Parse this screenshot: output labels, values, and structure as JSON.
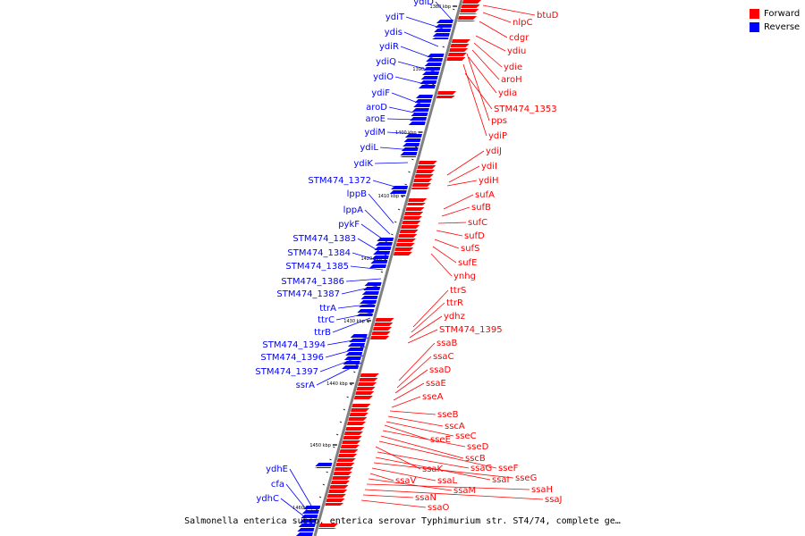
{
  "legend": [
    {
      "label": "Forward",
      "color": "#ff0000"
    },
    {
      "label": "Reverse",
      "color": "#0000ff"
    }
  ],
  "caption": "Salmonella enterica subsp. enterica serovar Typhimurium str. ST4/74, complete ge…",
  "colors": {
    "forward": "#ff0000",
    "reverse": "#0000ff",
    "backbone": "#808080",
    "tick": "#000000"
  },
  "ticks": [
    "1380 kbp",
    "1390 kbp",
    "1400 kbp",
    "1410 kbp",
    "1420 kbp",
    "1430 kbp",
    "1440 kbp",
    "1450 kbp",
    "1460 kbp"
  ],
  "reverse_genes": [
    "ydiD",
    "ydiT",
    "ydis",
    "ydiR",
    "ydiQ",
    "ydiO",
    "ydiF",
    "aroD",
    "aroE",
    "ydiM",
    "ydiL",
    "ydiK",
    "STM474_1372",
    "lppB",
    "lppA",
    "pykF",
    "STM474_1383",
    "STM474_1384",
    "STM474_1385",
    "STM474_1386",
    "STM474_1387",
    "ttrA",
    "ttrC",
    "ttrB",
    "STM474_1394",
    "STM474_1396",
    "STM474_1397",
    "ssrA",
    "ydhE",
    "cfa",
    "ydhC"
  ],
  "forward_genes": [
    "btuD",
    "nlpC",
    "cdgr",
    "ydiu",
    "ydie",
    "aroH",
    "ydia",
    "STM474_1353",
    "pps",
    "ydiP",
    "ydiJ",
    "ydiI",
    "ydiH",
    "sufA",
    "sufB",
    "sufC",
    "sufD",
    "sufS",
    "sufE",
    "ynhg",
    "ttrS",
    "ttrR",
    "ydhz",
    "STM474_1395",
    "ssaB",
    "ssaC",
    "ssaD",
    "ssaE",
    "sseA",
    "sseB",
    "sscA",
    "sseC",
    "sseE",
    "sseD",
    "sscB",
    "sseF",
    "ssaK",
    "ssaG",
    "ssaI",
    "sseG",
    "ssaL",
    "ssaV",
    "ssaM",
    "ssaH",
    "ssaJ",
    "ssaN",
    "ssaO"
  ]
}
